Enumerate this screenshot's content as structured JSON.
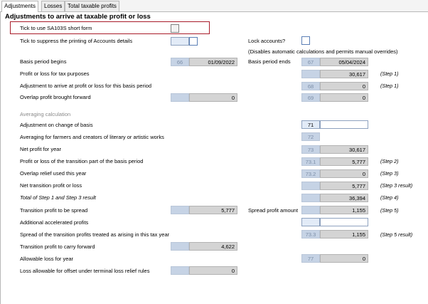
{
  "tabs": [
    "Adjustments",
    "Losses",
    "Total taxable profits"
  ],
  "title": "Adjustments to arrive at taxable profit or loss",
  "short_form_label": "Tick to use SA103S short form",
  "suppress_label": "Tick to suppress the printing of Accounts details",
  "lock_label": "Lock accounts?",
  "lock_note": "(Disables automatic calculations and permits manual overrides)",
  "basis_begins": {
    "label": "Basis period begins",
    "code": "66",
    "value": "01/09/2022"
  },
  "basis_ends": {
    "label": "Basis period ends",
    "code": "67",
    "value": "05/04/2024"
  },
  "profit_loss": {
    "label": "Profit or loss for tax purposes",
    "value": "30,617",
    "step": "(Step 1)"
  },
  "adjustment_basis": {
    "label": "Adjustment to arrive at profit or loss for this basis period",
    "code": "68",
    "value": "0",
    "step": "(Step 1)"
  },
  "overlap_bf": {
    "label": "Overlap profit brought forward",
    "value": "0",
    "code": "69",
    "value2": "0"
  },
  "averaging_heading": "Averaging calculation",
  "adj_change_basis": {
    "label": "Adjustment on change of basis",
    "code": "71",
    "value": ""
  },
  "averaging_farmers": {
    "label": "Averaging for farmers and creators of literary or artistic works",
    "code": "72"
  },
  "net_profit": {
    "label": "Net profit for year",
    "code": "73",
    "value": "30,617"
  },
  "transition_part": {
    "label": "Profit or loss of the transition part of the basis period",
    "code": "73.1",
    "value": "5,777",
    "step": "(Step 2)"
  },
  "overlap_relief": {
    "label": "Overlap relief used this year",
    "code": "73.2",
    "value": "0",
    "step": "(Step 3)"
  },
  "net_transition": {
    "label": "Net transition profit or loss",
    "value": "5,777",
    "step": "(Step 3 result)"
  },
  "total_steps": {
    "label": "Total of Step 1 and Step 3 result",
    "value": "36,394",
    "step": "(Step 4)"
  },
  "transition_spread": {
    "label": "Transition profit to be spread",
    "value": "5,777",
    "label2": "Spread profit amount",
    "value2": "1,155",
    "step": "(Step 5)"
  },
  "additional_accel": {
    "label": "Additional accelerated profits",
    "value": ""
  },
  "spread_treated": {
    "label": "Spread of the transition profits treated as arising in this tax year",
    "code": "73.3",
    "value": "1,155",
    "step": "(Step 5 result)"
  },
  "transition_cf": {
    "label": "Transition profit to carry forward",
    "value": "4,622"
  },
  "allowable_loss": {
    "label": "Allowable loss for year",
    "code": "77",
    "value": "0"
  },
  "terminal_loss": {
    "label": "Loss allowable for offset under terminal loss relief rules",
    "value": "0"
  }
}
